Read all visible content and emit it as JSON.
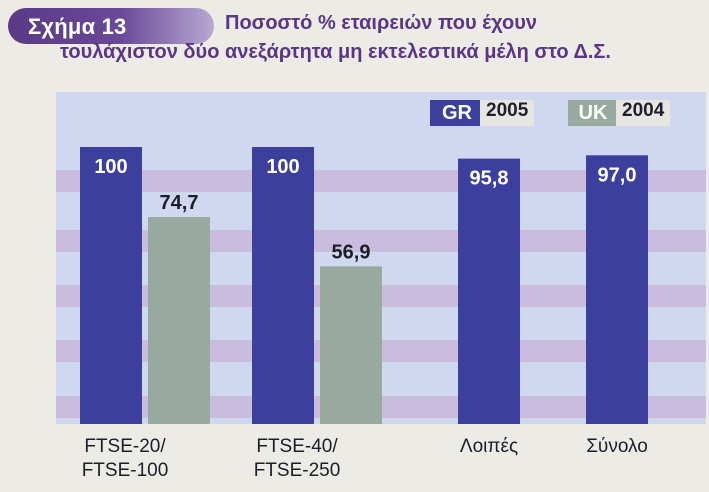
{
  "figure": {
    "badge_label": "Σχήμα 13",
    "title_line1": "Ποσοστό % εταιρειών που έχουν",
    "title_line2": "τουλάχιστον δύο ανεξάρτητα μη εκτελεστικά μέλη στο Δ.Σ."
  },
  "legend": {
    "gr_key": "GR",
    "gr_year": "2005",
    "uk_key": "UK",
    "uk_year": "2004"
  },
  "colors": {
    "gr": "#3c3f9c",
    "uk": "#98a9a0",
    "stripe": "#c7b3d9",
    "badge": "#5a3a86",
    "title": "#5a3684"
  },
  "chart_data": {
    "type": "bar",
    "categories": [
      [
        "FTSE-20/",
        "FTSE-100"
      ],
      [
        "FTSE-40/",
        "FTSE-250"
      ],
      [
        "Λοιπές"
      ],
      [
        "Σύνολο"
      ]
    ],
    "series": [
      {
        "name": "GR 2005",
        "values": [
          100,
          100,
          95.8,
          97.0
        ],
        "labels": [
          "100",
          "100",
          "95,8",
          "97,0"
        ]
      },
      {
        "name": "UK 2004",
        "values": [
          74.7,
          56.9,
          null,
          null
        ],
        "labels": [
          "74,7",
          "56,9",
          null,
          null
        ]
      }
    ],
    "ylim": [
      0,
      100
    ],
    "grid": false,
    "legend_position": "top-right"
  }
}
